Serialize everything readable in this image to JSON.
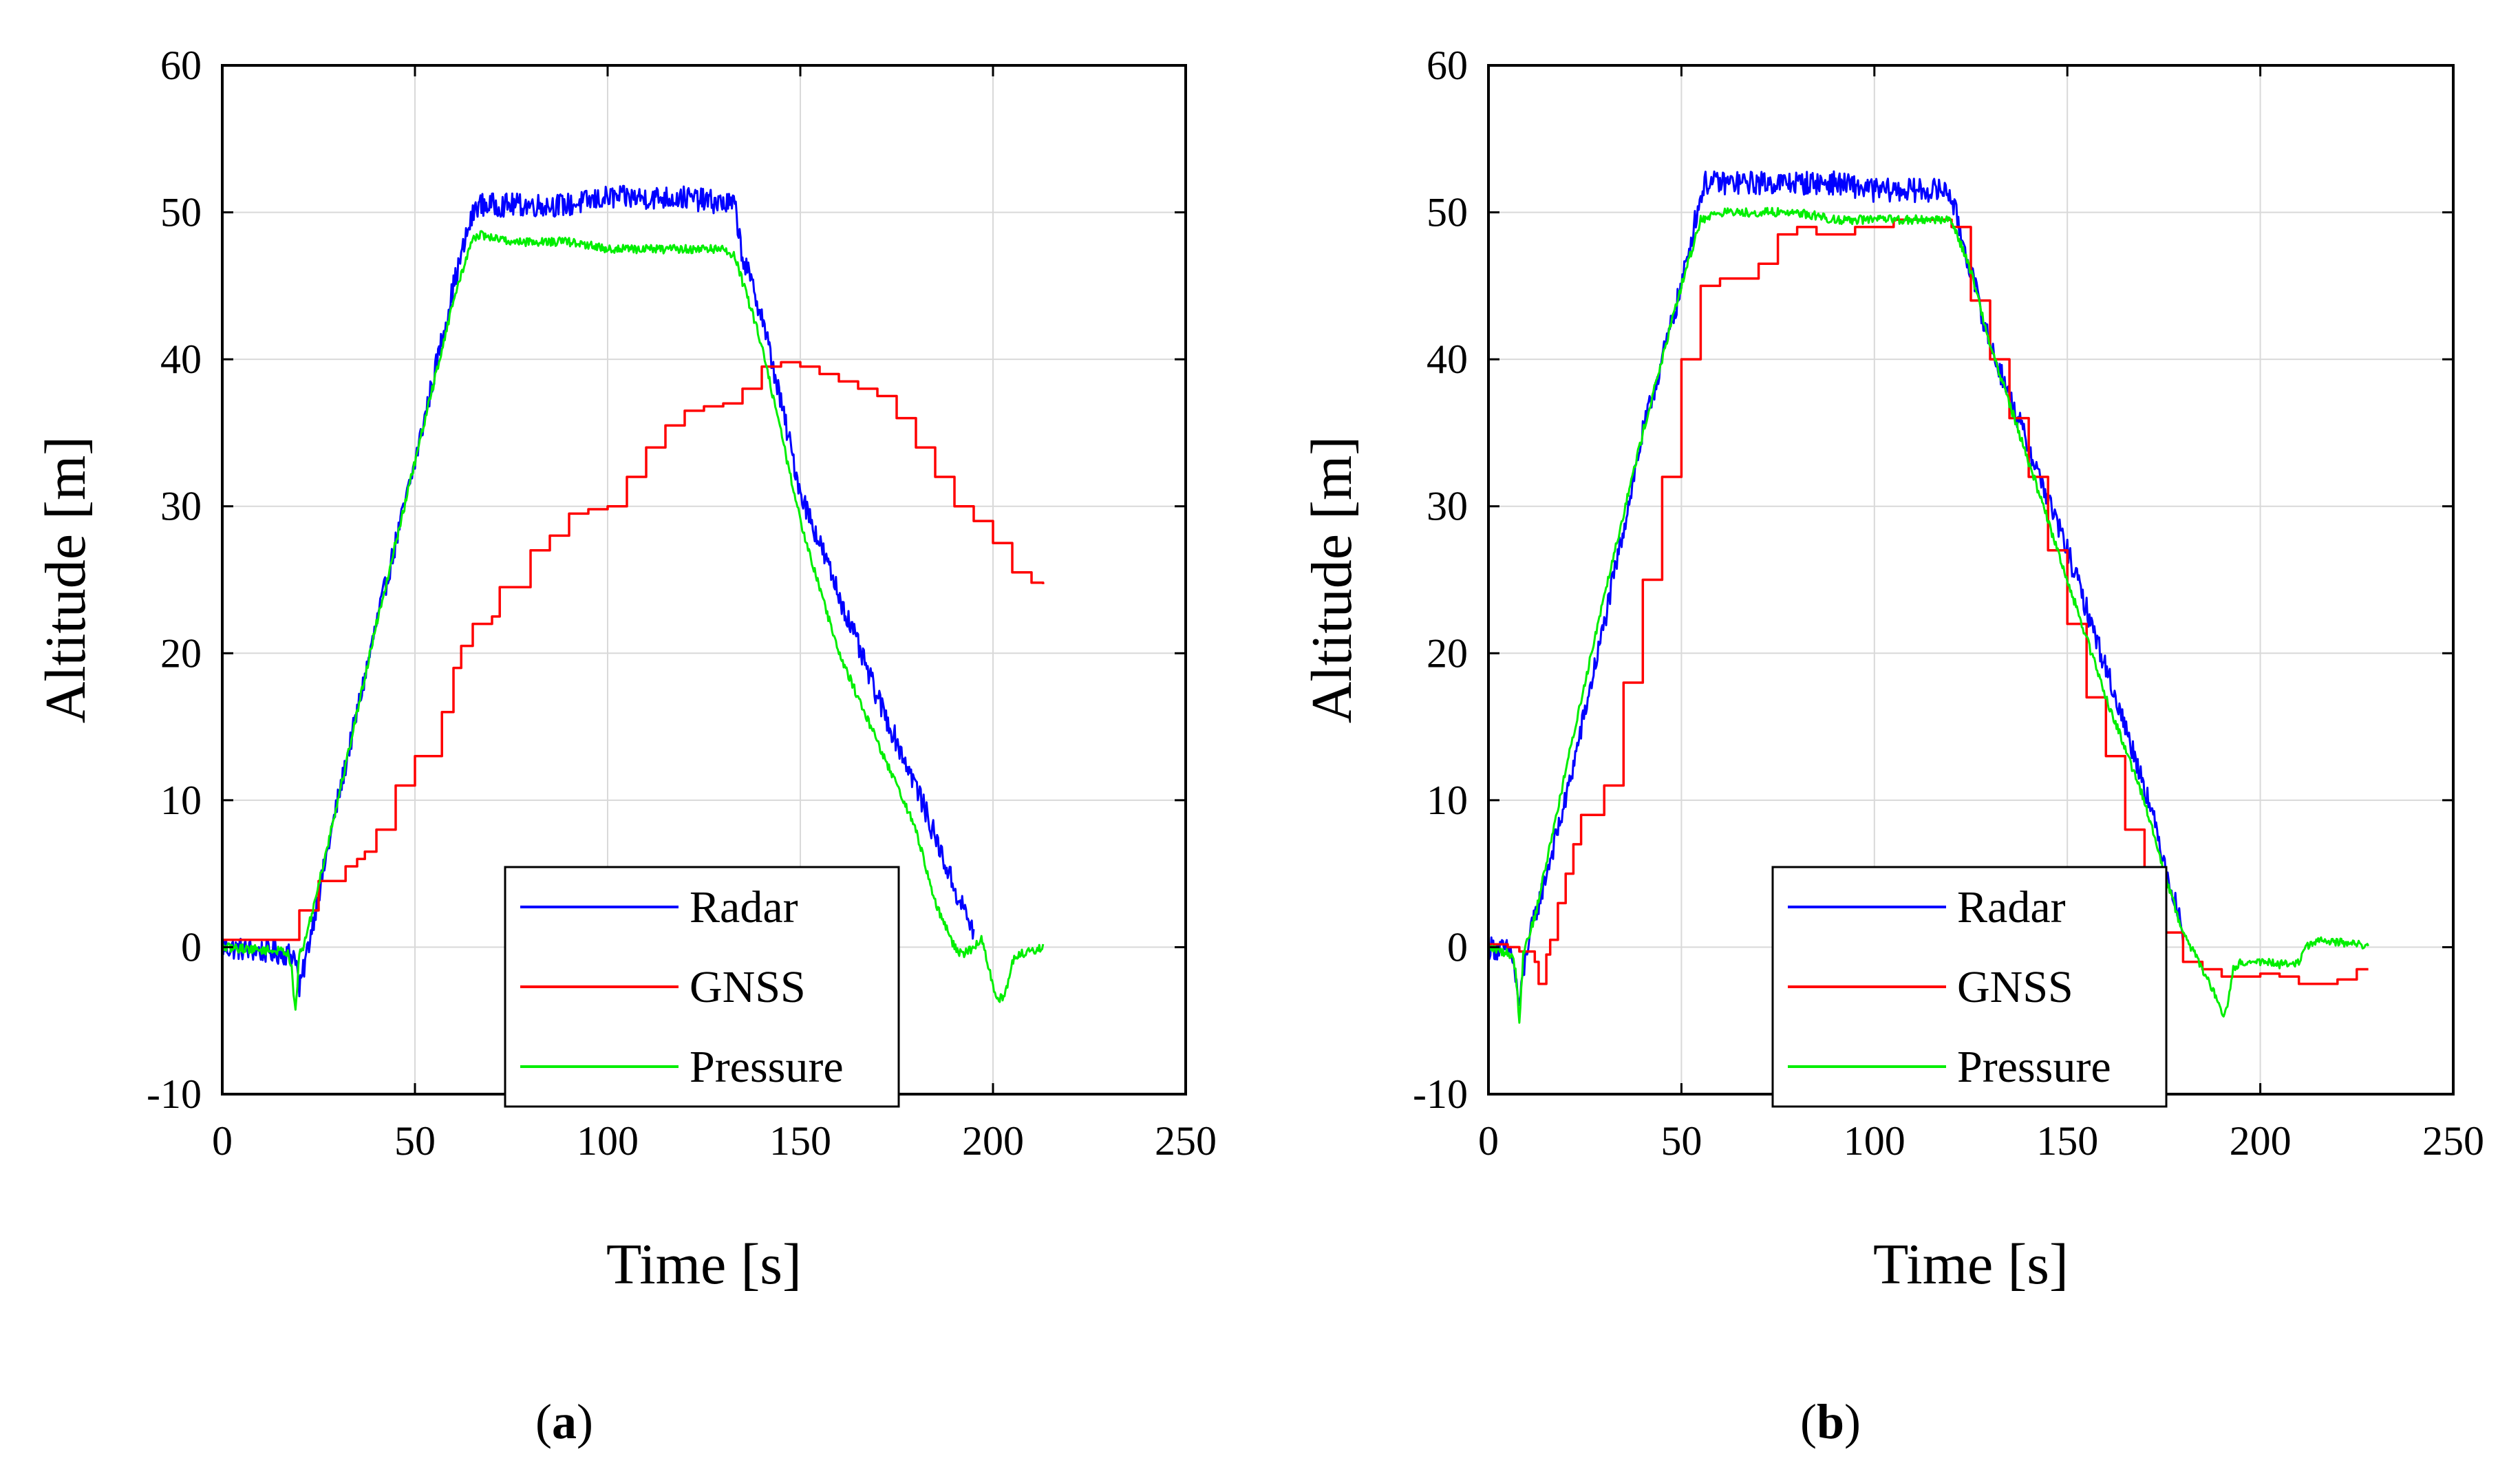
{
  "chart_data": [
    {
      "type": "line",
      "panel_label": "a",
      "xlabel": "Time [s]",
      "ylabel": "Altitude [m]",
      "xlim": [
        0,
        250
      ],
      "ylim": [
        -10,
        60
      ],
      "xticks": [
        0,
        50,
        100,
        150,
        200,
        250
      ],
      "yticks": [
        -10,
        0,
        10,
        20,
        30,
        40,
        50,
        60
      ],
      "grid": true,
      "legend_position": "bottom-center",
      "series": [
        {
          "name": "Radar",
          "color": "#0000ff",
          "noise": 0.8,
          "x": [
            0,
            19,
            20,
            23,
            30,
            40,
            50,
            60,
            64,
            66,
            75,
            90,
            100,
            110,
            120,
            133,
            135,
            140,
            145,
            150,
            160,
            170,
            180,
            185,
            190,
            195
          ],
          "y": [
            0,
            -0.5,
            -3,
            1,
            10,
            22,
            33,
            45,
            49,
            50.5,
            50.5,
            50.5,
            51,
            51,
            51,
            50.5,
            47,
            43,
            37,
            31,
            24,
            17,
            11,
            7.5,
            4,
            1
          ]
        },
        {
          "name": "GNSS",
          "color": "#ff0000",
          "noise": 0,
          "x": [
            0,
            19,
            20,
            23,
            25,
            30,
            32,
            35,
            37,
            40,
            45,
            50,
            55,
            57,
            60,
            62,
            65,
            70,
            72,
            75,
            80,
            85,
            90,
            95,
            100,
            105,
            110,
            115,
            120,
            125,
            130,
            135,
            140,
            145,
            150,
            155,
            160,
            165,
            170,
            172,
            175,
            180,
            185,
            190,
            195,
            200,
            205,
            210,
            213
          ],
          "y": [
            0.5,
            0.5,
            2.5,
            2.5,
            4.5,
            4.5,
            5.5,
            6,
            6.5,
            8,
            11,
            13,
            13,
            16,
            19,
            20.5,
            22,
            22.5,
            24.5,
            24.5,
            27,
            28,
            29.5,
            29.8,
            30,
            32,
            34,
            35.5,
            36.5,
            36.8,
            37,
            38,
            39.5,
            39.8,
            39.5,
            39,
            38.5,
            38,
            37.5,
            37.5,
            36,
            34,
            32,
            30,
            29,
            27.5,
            25.5,
            24.8,
            24.7
          ]
        },
        {
          "name": "Pressure",
          "color": "#00ee00",
          "noise": 0.3,
          "x": [
            0,
            17,
            18,
            19,
            20,
            21,
            23,
            30,
            40,
            50,
            60,
            64,
            66,
            75,
            90,
            100,
            110,
            120,
            130,
            133,
            140,
            150,
            160,
            170,
            180,
            185,
            190,
            192,
            195,
            197,
            199,
            201,
            203,
            205,
            207,
            210,
            213
          ],
          "y": [
            0,
            -0.3,
            -1.5,
            -4.5,
            -0.5,
            0,
            2,
            10,
            22,
            33,
            44,
            47.5,
            48.5,
            48,
            48,
            47.5,
            47.5,
            47.5,
            47.5,
            47,
            41,
            29,
            20,
            14,
            8,
            3,
            0,
            -0.5,
            0,
            0.5,
            -1.5,
            -3.5,
            -3.5,
            -1,
            -0.5,
            -0.3,
            0
          ]
        }
      ]
    },
    {
      "type": "line",
      "panel_label": "b",
      "xlabel": "Time [s]",
      "ylabel": "Altitude [m]",
      "xlim": [
        0,
        250
      ],
      "ylim": [
        -10,
        60
      ],
      "xticks": [
        0,
        50,
        100,
        150,
        200,
        250
      ],
      "yticks": [
        -10,
        0,
        10,
        20,
        30,
        40,
        50,
        60
      ],
      "grid": true,
      "legend_position": "bottom-center",
      "series": [
        {
          "name": "Radar",
          "color": "#0000ff",
          "noise": 0.8,
          "x": [
            0,
            6,
            8,
            10,
            20,
            30,
            40,
            50,
            54,
            56,
            60,
            70,
            80,
            90,
            100,
            110,
            119,
            120,
            125,
            130,
            140,
            150,
            160,
            170,
            175,
            178,
            180
          ],
          "y": [
            0,
            -0.3,
            -4,
            0,
            10,
            22,
            35,
            45,
            50,
            52,
            52,
            52,
            52,
            52,
            51.5,
            51.5,
            51.5,
            51,
            46,
            41,
            34,
            27,
            19,
            11,
            6,
            3,
            1
          ]
        },
        {
          "name": "GNSS",
          "color": "#ff0000",
          "noise": 0,
          "x": [
            0,
            5,
            8,
            12,
            13,
            14,
            15,
            16,
            18,
            20,
            22,
            24,
            26,
            28,
            30,
            35,
            40,
            45,
            50,
            55,
            60,
            65,
            70,
            75,
            80,
            85,
            90,
            95,
            100,
            105,
            110,
            115,
            120,
            125,
            130,
            135,
            140,
            145,
            150,
            155,
            160,
            165,
            170,
            175,
            180,
            185,
            190,
            195,
            200,
            205,
            210,
            215,
            220,
            225,
            228
          ],
          "y": [
            0.2,
            0,
            -0.3,
            -1,
            -2.5,
            -2.5,
            -0.5,
            0.5,
            3,
            5,
            7,
            9,
            9,
            9,
            11,
            18,
            25,
            32,
            40,
            45,
            45.5,
            45.5,
            46.5,
            48.5,
            49,
            48.5,
            48.5,
            49,
            49,
            49.5,
            49.5,
            49.5,
            49,
            44,
            40,
            36,
            32,
            27,
            22,
            17,
            13,
            8,
            4,
            1,
            -1,
            -1.5,
            -2,
            -2,
            -1.8,
            -2,
            -2.5,
            -2.5,
            -2.2,
            -1.5,
            -1.5
          ]
        },
        {
          "name": "Pressure",
          "color": "#00ee00",
          "noise": 0.3,
          "x": [
            0,
            6,
            7,
            8,
            9,
            10,
            12,
            20,
            30,
            40,
            50,
            55,
            60,
            70,
            80,
            90,
            100,
            110,
            120,
            125,
            130,
            140,
            150,
            160,
            170,
            175,
            180,
            185,
            188,
            190,
            191,
            193,
            195,
            200,
            205,
            210,
            212,
            215,
            220,
            225,
            228
          ],
          "y": [
            0,
            -0.5,
            -1.5,
            -5,
            -0.5,
            0.5,
            2,
            12,
            24,
            35,
            45,
            49.5,
            50,
            50,
            50,
            49.5,
            49.5,
            49.5,
            49.5,
            46,
            41,
            33,
            25,
            17,
            10,
            5,
            1,
            -1.5,
            -3,
            -4.5,
            -4.5,
            -1.5,
            -1,
            -1,
            -1.2,
            -1,
            0,
            0.5,
            0.3,
            0.2,
            0
          ]
        }
      ]
    }
  ]
}
